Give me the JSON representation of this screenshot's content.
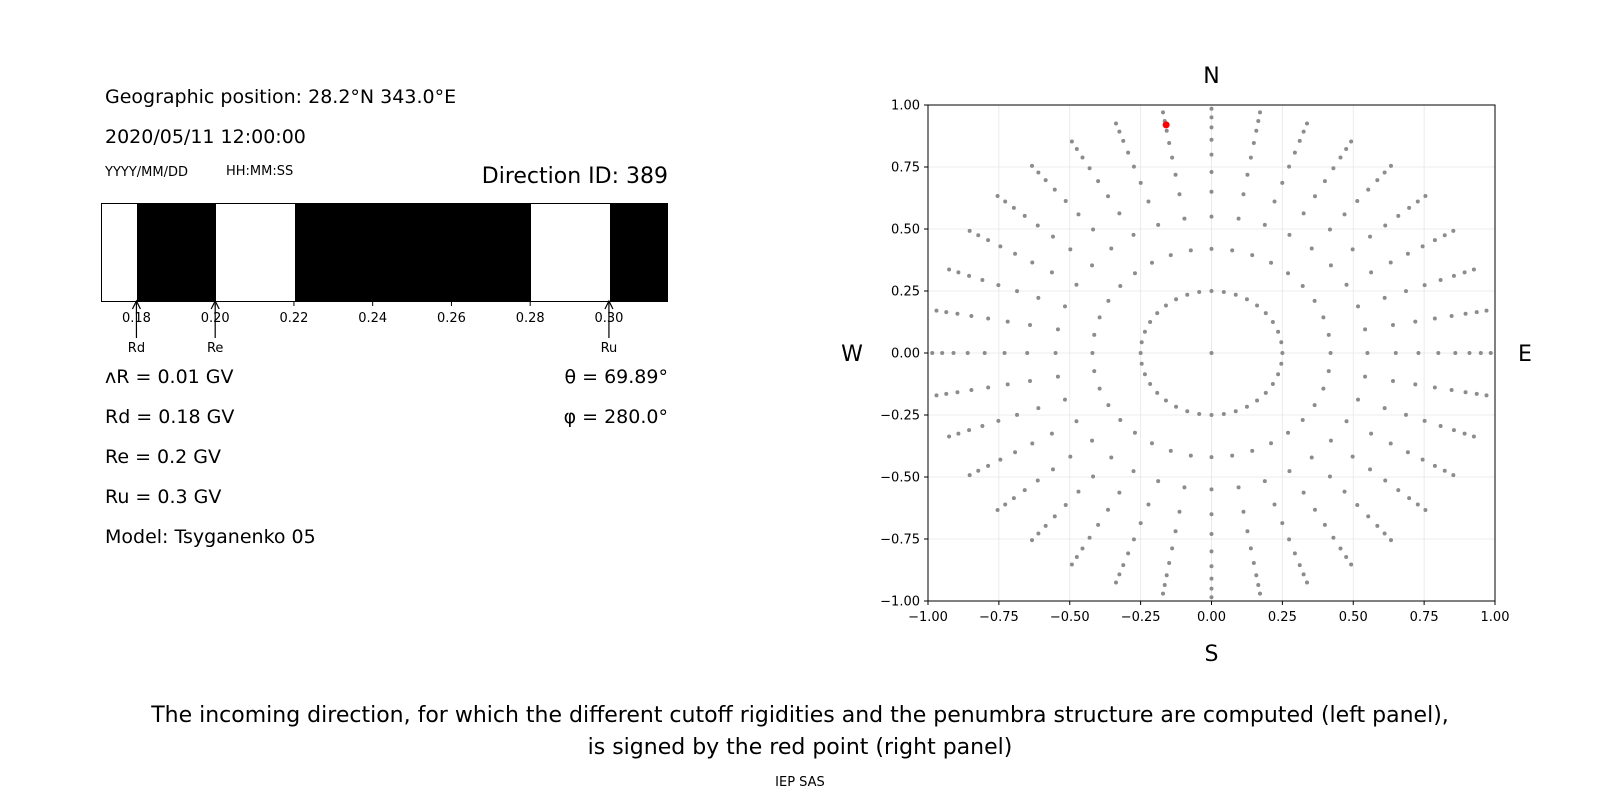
{
  "left_panel": {
    "geo_position": "Geographic position: 28.2°N 343.0°E",
    "datetime": "2020/05/11 12:00:00",
    "date_format": "YYYY/MM/DD",
    "time_format": "HH:MM:SS",
    "direction_id": "Direction ID: 389",
    "delta_r": "ᴧR = 0.01 GV",
    "rd": "Rd = 0.18 GV",
    "re": "Re = 0.2 GV",
    "ru": "Ru = 0.3 GV",
    "model": "Model: Tsyganenko 05",
    "theta": "θ = 69.89°",
    "phi": "φ = 280.0°"
  },
  "caption": {
    "line1": "The incoming direction, for which the different cutoff rigidities and the penumbra structure are computed (left panel),",
    "line2": "is signed by the red point (right panel)",
    "credit": "IEP SAS"
  },
  "chart_data": [
    {
      "type": "bar",
      "subtype": "penumbra-strip",
      "x_range": [
        0.171,
        0.315
      ],
      "x_ticks": [
        "0.18",
        "0.20",
        "0.22",
        "0.24",
        "0.26",
        "0.28",
        "0.30"
      ],
      "segments": [
        {
          "from": 0.171,
          "to": 0.18,
          "allowed": true
        },
        {
          "from": 0.18,
          "to": 0.2,
          "allowed": false
        },
        {
          "from": 0.2,
          "to": 0.22,
          "allowed": true
        },
        {
          "from": 0.22,
          "to": 0.28,
          "allowed": false
        },
        {
          "from": 0.28,
          "to": 0.3,
          "allowed": true
        },
        {
          "from": 0.3,
          "to": 0.315,
          "allowed": false
        }
      ],
      "colors": {
        "allowed": "#ffffff",
        "forbidden": "#000000"
      },
      "markers": [
        {
          "label": "Rd",
          "x": 0.18
        },
        {
          "label": "Re",
          "x": 0.2
        },
        {
          "label": "Ru",
          "x": 0.3
        }
      ]
    },
    {
      "type": "scatter",
      "xlim": [
        -1,
        1
      ],
      "ylim": [
        -1,
        1
      ],
      "ticks": [
        "-1.00",
        "-0.75",
        "-0.50",
        "-0.25",
        "0.00",
        "0.25",
        "0.50",
        "0.75",
        "1.00"
      ],
      "grid": true,
      "compass": {
        "north": "N",
        "south": "S",
        "west": "W",
        "east": "E"
      },
      "grid_pattern": {
        "rings": 10,
        "spokes": 36,
        "spoke_step_deg": 10,
        "ring_radii": [
          0.25,
          0.42,
          0.55,
          0.65,
          0.73,
          0.8,
          0.86,
          0.91,
          0.95,
          0.985
        ]
      },
      "point_color": "#8c8c8c",
      "highlight": {
        "x": -0.16,
        "y": 0.92,
        "color": "#ff0000"
      }
    }
  ]
}
